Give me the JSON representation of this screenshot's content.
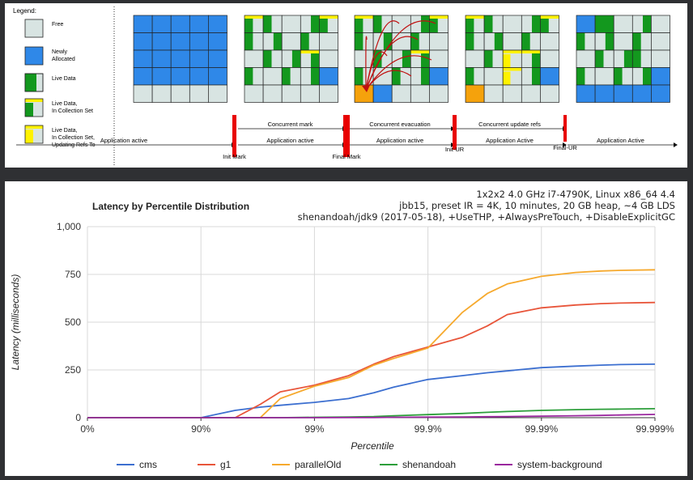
{
  "diagram": {
    "legend_title": "Legend:",
    "legend": [
      {
        "kind": "free",
        "lines": [
          "Free"
        ]
      },
      {
        "kind": "new",
        "lines": [
          "Newly",
          "Allocated"
        ]
      },
      {
        "kind": "live",
        "lines": [
          "Live Data"
        ]
      },
      {
        "kind": "cset",
        "lines": [
          "Live Data,",
          "In Collection Set"
        ]
      },
      {
        "kind": "refs",
        "lines": [
          "Live Data,",
          "In Collection Set,",
          "Updating Refs To"
        ]
      }
    ],
    "phases_upper": [
      "Concurrent mark",
      "Concurrent evacuation",
      "Concurrent update refs"
    ],
    "phases_lower": [
      "Application active",
      "Application active",
      "Application active",
      "Application Active",
      "Application Active"
    ],
    "markers": [
      "Init Mark",
      "Final Mark",
      "Init-UR",
      "Final-UR"
    ],
    "colors": {
      "free": "#d8e4e2",
      "new": "#2f88e8",
      "live": "#13981e",
      "yellow": "#fff200",
      "orange": "#f5a20c",
      "barrier": "#e80000",
      "arrows": "#c01010"
    }
  },
  "chart_data": {
    "type": "line",
    "title": "Latency by Percentile Distribution",
    "subtitle_lines": [
      "1x2x2 4.0 GHz i7-4790K, Linux x86_64 4.4",
      "jbb15, preset IR = 4K, 10 minutes, 20 GB heap, ~4 GB LDS",
      "shenandoah/jdk9 (2017-05-18), +UseTHP, +AlwaysPreTouch, +DisableExplicitGC"
    ],
    "xlabel": "Percentile",
    "ylabel": "Latency (milliseconds)",
    "x_scale": "log-nines",
    "x_ticks": [
      "0%",
      "90%",
      "99%",
      "99.9%",
      "99.99%",
      "99.999%"
    ],
    "y_ticks": [
      "0",
      "250",
      "500",
      "750",
      "1,000"
    ],
    "ylim": [
      0,
      1000
    ],
    "grid": true,
    "legend_position": "bottom",
    "x": [
      "0%",
      "50%",
      "90%",
      "95%",
      "97%",
      "98%",
      "99%",
      "99.5%",
      "99.7%",
      "99.8%",
      "99.9%",
      "99.95%",
      "99.97%",
      "99.98%",
      "99.99%",
      "99.995%",
      "99.997%",
      "99.998%",
      "99.999%"
    ],
    "series": [
      {
        "name": "cms",
        "color": "#3c6fd0",
        "values": [
          0,
          0,
          0,
          38,
          55,
          65,
          80,
          100,
          130,
          160,
          200,
          220,
          235,
          245,
          262,
          270,
          275,
          278,
          280
        ]
      },
      {
        "name": "g1",
        "color": "#e8553a",
        "values": [
          0,
          0,
          0,
          0,
          70,
          135,
          170,
          220,
          280,
          320,
          370,
          420,
          480,
          540,
          575,
          590,
          597,
          600,
          603
        ]
      },
      {
        "name": "parallelOld",
        "color": "#f6a92d",
        "values": [
          0,
          0,
          0,
          0,
          0,
          100,
          165,
          210,
          275,
          310,
          365,
          550,
          650,
          700,
          740,
          760,
          768,
          771,
          774
        ]
      },
      {
        "name": "shenandoah",
        "color": "#2c9e3a",
        "values": [
          0,
          0,
          0,
          0,
          0,
          0,
          2,
          4,
          6,
          10,
          16,
          22,
          28,
          32,
          38,
          42,
          44,
          45,
          47
        ]
      },
      {
        "name": "system-background",
        "color": "#9a279e",
        "values": [
          0,
          0,
          0,
          0,
          0,
          0,
          0,
          1,
          1,
          2,
          3,
          4,
          5,
          6,
          8,
          10,
          12,
          14,
          17
        ]
      }
    ]
  }
}
